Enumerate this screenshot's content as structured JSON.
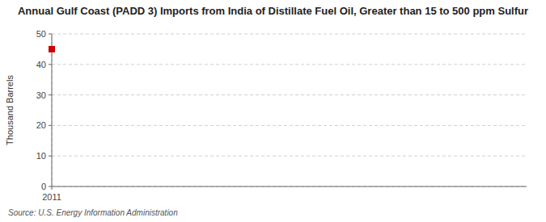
{
  "chart_data": {
    "type": "scatter",
    "title": "Annual Gulf Coast (PADD 3) Imports from India of Distillate Fuel Oil, Greater than 15 to 500 ppm Sulfur",
    "ylabel": "Thousand Barrels",
    "source": "Source: U.S. Energy Information Administration",
    "x": [
      2011
    ],
    "values": [
      45
    ],
    "color": "#cc0000",
    "marker": "square",
    "xlim": [
      2011,
      2016
    ],
    "xticks": [
      2011
    ],
    "ylim": [
      0,
      50
    ],
    "yticks": [
      0,
      10,
      20,
      30,
      40,
      50
    ],
    "grid": true
  }
}
